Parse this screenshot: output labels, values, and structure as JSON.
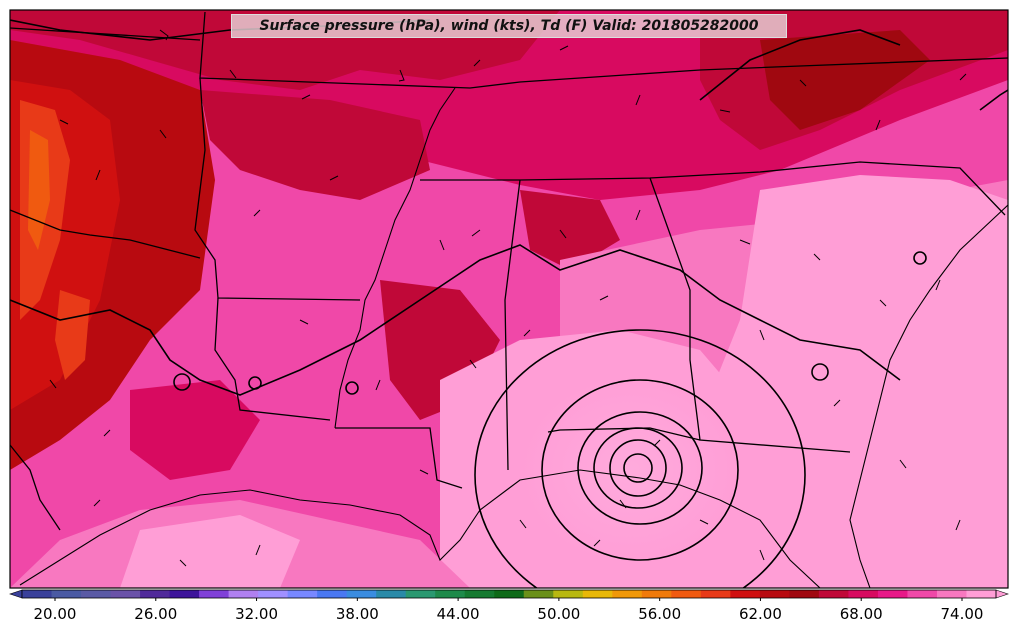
{
  "title": "Surface pressure (hPa), wind (kts), Td (F) Valid: 201805282000",
  "colorbar": {
    "colors": [
      "#39409a",
      "#4a5aa3",
      "#5a5aa5",
      "#6a52a8",
      "#502a9a",
      "#3d149a",
      "#8040d8",
      "#b080f0",
      "#a090ff",
      "#7888ff",
      "#4a78f2",
      "#3a8ce0",
      "#2a8aa8",
      "#2a9870",
      "#1e8a4a",
      "#157a30",
      "#0e6a18",
      "#6a9018",
      "#b8b810",
      "#e8b808",
      "#f09808",
      "#f07a0a",
      "#f05a10",
      "#e83a18",
      "#d01010",
      "#b80a10",
      "#a00810",
      "#c00838",
      "#d80a60",
      "#e81888",
      "#f048a8",
      "#f878c0",
      "#ff9ed6"
    ],
    "tick_labels": [
      "20.00",
      "26.00",
      "32.00",
      "38.00",
      "44.00",
      "50.00",
      "56.00",
      "62.00",
      "68.00",
      "74.00"
    ]
  },
  "style": {
    "map_background": "#f060a8",
    "boundary_color": "#000000"
  }
}
